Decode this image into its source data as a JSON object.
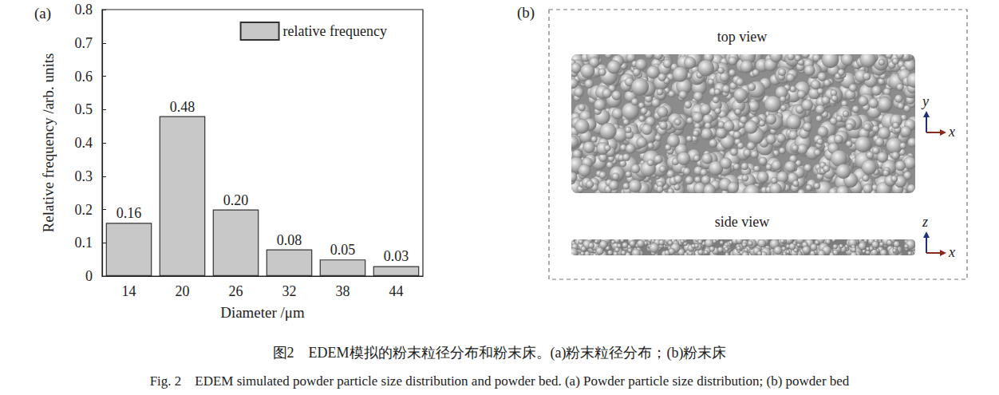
{
  "chart_data": {
    "type": "bar",
    "panel_label": "(a)",
    "xlabel": "Diameter /μm",
    "ylabel": "Relative frequency /arb. units",
    "categories": [
      "14",
      "20",
      "26",
      "32",
      "38",
      "44"
    ],
    "series": [
      {
        "name": "relative frequency",
        "color": "#c8c8c8",
        "values": [
          0.16,
          0.48,
          0.2,
          0.08,
          0.05,
          0.03
        ],
        "value_labels": [
          "0.16",
          "0.48",
          "0.20",
          "0.08",
          "0.05",
          "0.03"
        ]
      }
    ],
    "ylim": [
      0,
      0.8
    ],
    "yticks": [
      0,
      0.1,
      0.2,
      0.3,
      0.4,
      0.5,
      0.6,
      0.7,
      0.8
    ],
    "legend": "upper right",
    "data_labels": true,
    "grid": false
  },
  "powder_bed": {
    "panel_label": "(b)",
    "top_view": {
      "title": "top view",
      "vertical_axis": "y",
      "horizontal_axis": "x"
    },
    "side_view": {
      "title": "side view",
      "vertical_axis": "z",
      "horizontal_axis": "x"
    }
  },
  "caption": {
    "zh": "图2　EDEM模拟的粉末粒径分布和粉末床。(a)粉末粒径分布；(b)粉末床",
    "en": "Fig. 2　EDEM simulated powder particle size distribution and powder bed. (a) Powder particle size distribution; (b) powder bed"
  }
}
